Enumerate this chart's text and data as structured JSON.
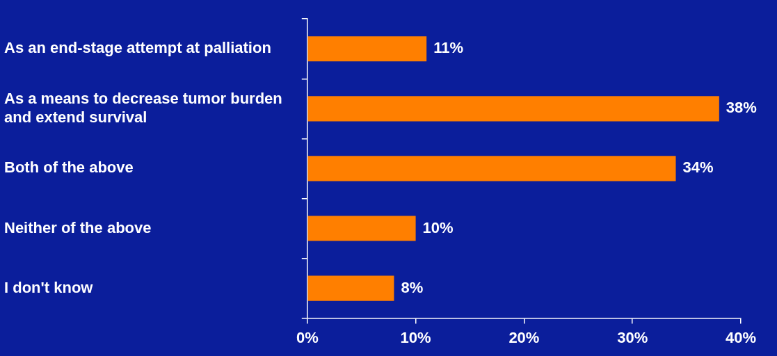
{
  "chart_data": {
    "type": "bar",
    "orientation": "horizontal",
    "categories": [
      "As an end-stage attempt at palliation",
      "As a means to decrease tumor burden\nand extend survival",
      "Both of the above",
      "Neither of the above",
      "I don't know"
    ],
    "values": [
      11,
      38,
      34,
      10,
      8
    ],
    "value_labels": [
      "11%",
      "38%",
      "34%",
      "10%",
      "8%"
    ],
    "color": "#ff7f00",
    "xlim": [
      0,
      40
    ],
    "xticks": [
      {
        "value": 0,
        "label": "0%"
      },
      {
        "value": 10,
        "label": "10%"
      },
      {
        "value": 20,
        "label": "20%"
      },
      {
        "value": 30,
        "label": "30%"
      },
      {
        "value": 40,
        "label": "40%"
      }
    ],
    "grid": false,
    "legend": false
  }
}
